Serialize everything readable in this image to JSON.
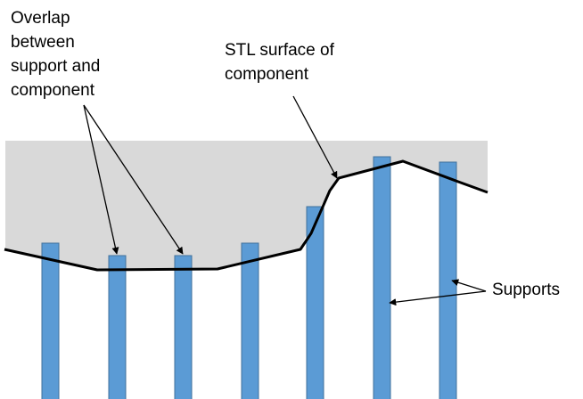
{
  "labels": {
    "overlap": {
      "lines": [
        "Overlap",
        "between",
        "support and",
        "component"
      ]
    },
    "stl_surface": {
      "lines": [
        "STL surface of",
        "component"
      ]
    },
    "supports": {
      "lines": [
        "Supports"
      ]
    }
  },
  "colors": {
    "component_fill": "#d9d9d9",
    "surface_line": "#000000",
    "support_fill": "#5b9bd5",
    "support_stroke": "#41719c",
    "arrow": "#000000"
  },
  "icons": {
    "arrowhead": "arrowhead-icon"
  }
}
